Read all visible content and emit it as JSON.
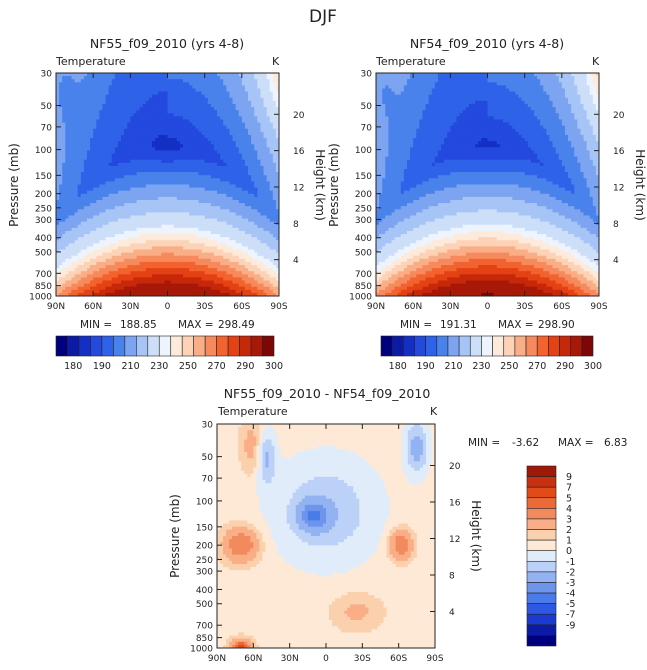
{
  "figure": {
    "title": "DJF"
  },
  "axes": {
    "pressure_label": "Pressure (mb)",
    "height_label": "Height (km)",
    "pressure_ticks": [
      "30",
      "50",
      "70",
      "100",
      "150",
      "200",
      "250",
      "300",
      "400",
      "500",
      "700",
      "850",
      "1000"
    ],
    "height_ticks": [
      "4",
      "8",
      "12",
      "16",
      "20"
    ],
    "lat_ticks": [
      "90N",
      "60N",
      "30N",
      "0",
      "30S",
      "60S",
      "90S"
    ]
  },
  "colors": {
    "abs_scale": [
      "#00007f",
      "#0b1ba6",
      "#1430c4",
      "#2349de",
      "#2e62e8",
      "#4a82ec",
      "#7ca4f0",
      "#a6c4f6",
      "#cddff8",
      "#eef4fd",
      "#fdeadb",
      "#fcd3b6",
      "#f9ae87",
      "#f68a5c",
      "#f2632f",
      "#e44114",
      "#c8280a",
      "#a81808",
      "#7d0606"
    ],
    "diff_scale": [
      "#00007f",
      "#0b1ba6",
      "#1a3ad2",
      "#2d58e4",
      "#4a7be8",
      "#6d95ec",
      "#93b2f2",
      "#bcd1f7",
      "#e1ecfb",
      "#fde9d6",
      "#fbd0ad",
      "#f9ae87",
      "#f28a5e",
      "#ec6a38",
      "#e24a18",
      "#c83010",
      "#a01808"
    ]
  },
  "chart_data": [
    {
      "type": "heatmap",
      "title": "NF55_f09_2010 (yrs 4-8)",
      "variable": "Temperature",
      "units": "K",
      "stats": {
        "min_label": "MIN =",
        "min": "188.85",
        "max_label": "MAX =",
        "max": "298.49"
      },
      "colorbar_labels": [
        "180",
        "190",
        "210",
        "230",
        "250",
        "270",
        "290",
        "300"
      ],
      "xlim": [
        90,
        -90
      ],
      "pressure_range_mb": [
        30,
        1000
      ],
      "field": {
        "min": 188.85,
        "max": 298.49,
        "cold_core_lat": 0,
        "cold_core_mb": 100
      }
    },
    {
      "type": "heatmap",
      "title": "NF54_f09_2010 (yrs 4-8)",
      "variable": "Temperature",
      "units": "K",
      "stats": {
        "min_label": "MIN =",
        "min": "191.31",
        "max_label": "MAX =",
        "max": "298.90"
      },
      "colorbar_labels": [
        "180",
        "190",
        "210",
        "230",
        "250",
        "270",
        "290",
        "300"
      ],
      "xlim": [
        90,
        -90
      ],
      "pressure_range_mb": [
        30,
        1000
      ],
      "field": {
        "min": 191.31,
        "max": 298.9,
        "cold_core_lat": 0,
        "cold_core_mb": 100
      }
    },
    {
      "type": "heatmap",
      "title": "NF55_f09_2010 - NF54_f09_2010",
      "variable": "Temperature",
      "units": "K",
      "stats": {
        "min_label": "MIN =",
        "min": "-3.62",
        "max_label": "MAX =",
        "max": "6.83"
      },
      "colorbar_labels": [
        "9",
        "7",
        "5",
        "4",
        "3",
        "2",
        "1",
        "0",
        "-1",
        "-2",
        "-3",
        "-4",
        "-5",
        "-7",
        "-9"
      ],
      "xlim": [
        90,
        -90
      ],
      "pressure_range_mb": [
        30,
        1000
      ],
      "features": [
        {
          "lat": 70,
          "mb": 200,
          "value": 2.5
        },
        {
          "lat": -62,
          "mb": 200,
          "value": 2.5
        },
        {
          "lat": 70,
          "mb": 1000,
          "value": 3.5
        },
        {
          "lat": 10,
          "mb": 120,
          "value": -2.5
        },
        {
          "lat": 50,
          "mb": 45,
          "value": -1.5
        },
        {
          "lat": -75,
          "mb": 40,
          "value": -1.5
        }
      ]
    }
  ]
}
